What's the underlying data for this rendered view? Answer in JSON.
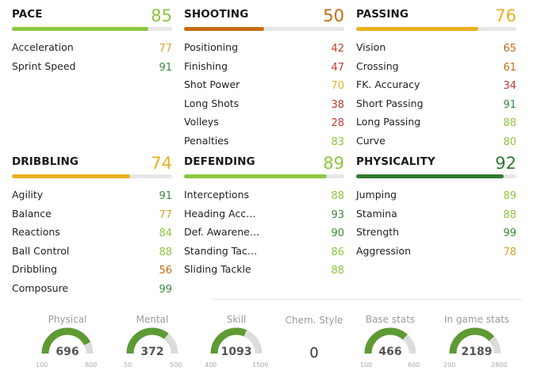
{
  "colors": {
    "green_light": "#8cc63f",
    "green_dark": "#2f7a2f",
    "orange": "#c46d12",
    "yellow": "#e8b120",
    "red": "#c0392b",
    "gauge_fill": "#5e9a34",
    "gauge_track": "#dcdcdc"
  },
  "blocks": [
    {
      "title": "PACE",
      "value": "85",
      "value_color": "#8cc63f",
      "bar_pct": 85,
      "bar_color": "#8cc63f",
      "stats": [
        {
          "label": "Acceleration",
          "value": "77",
          "color": "#d4a42a"
        },
        {
          "label": "Sprint Speed",
          "value": "91",
          "color": "#3a8a3a"
        }
      ]
    },
    {
      "title": "SHOOTING",
      "value": "50",
      "value_color": "#c46d12",
      "bar_pct": 50,
      "bar_color": "#c46d12",
      "stats": [
        {
          "label": "Positioning",
          "value": "42",
          "color": "#c0392b"
        },
        {
          "label": "Finishing",
          "value": "47",
          "color": "#c0392b"
        },
        {
          "label": "Shot Power",
          "value": "70",
          "color": "#e8b120"
        },
        {
          "label": "Long Shots",
          "value": "38",
          "color": "#c0392b"
        },
        {
          "label": "Volleys",
          "value": "28",
          "color": "#c0392b"
        },
        {
          "label": "Penalties",
          "value": "83",
          "color": "#8cc63f"
        }
      ]
    },
    {
      "title": "PASSING",
      "value": "76",
      "value_color": "#e8b120",
      "bar_pct": 76,
      "bar_color": "#e8b120",
      "stats": [
        {
          "label": "Vision",
          "value": "65",
          "color": "#c46d12"
        },
        {
          "label": "Crossing",
          "value": "61",
          "color": "#c46d12"
        },
        {
          "label": "FK. Accuracy",
          "value": "34",
          "color": "#c0392b"
        },
        {
          "label": "Short Passing",
          "value": "91",
          "color": "#3a8a3a"
        },
        {
          "label": "Long Passing",
          "value": "88",
          "color": "#8cc63f"
        },
        {
          "label": "Curve",
          "value": "80",
          "color": "#8cc63f"
        }
      ]
    },
    {
      "title": "DRIBBLING",
      "value": "74",
      "value_color": "#e8b120",
      "bar_pct": 74,
      "bar_color": "#e8b120",
      "stats": [
        {
          "label": "Agility",
          "value": "91",
          "color": "#3a8a3a"
        },
        {
          "label": "Balance",
          "value": "77",
          "color": "#d4a42a"
        },
        {
          "label": "Reactions",
          "value": "84",
          "color": "#8cc63f"
        },
        {
          "label": "Ball Control",
          "value": "88",
          "color": "#8cc63f"
        },
        {
          "label": "Dribbling",
          "value": "56",
          "color": "#c46d12"
        },
        {
          "label": "Composure",
          "value": "99",
          "color": "#3a8a3a"
        }
      ]
    },
    {
      "title": "DEFENDING",
      "value": "89",
      "value_color": "#8cc63f",
      "bar_pct": 89,
      "bar_color": "#8cc63f",
      "stats": [
        {
          "label": "Interceptions",
          "value": "88",
          "color": "#8cc63f"
        },
        {
          "label": "Heading Acc…",
          "value": "93",
          "color": "#3a8a3a"
        },
        {
          "label": "Def. Awarene…",
          "value": "90",
          "color": "#3a8a3a"
        },
        {
          "label": "Standing Tac…",
          "value": "86",
          "color": "#8cc63f"
        },
        {
          "label": "Sliding Tackle",
          "value": "88",
          "color": "#8cc63f"
        }
      ]
    },
    {
      "title": "PHYSICALITY",
      "value": "92",
      "value_color": "#2f7a2f",
      "bar_pct": 92,
      "bar_color": "#2f7a2f",
      "stats": [
        {
          "label": "Jumping",
          "value": "89",
          "color": "#8cc63f"
        },
        {
          "label": "Stamina",
          "value": "88",
          "color": "#8cc63f"
        },
        {
          "label": "Strength",
          "value": "99",
          "color": "#3a8a3a"
        },
        {
          "label": "Aggression",
          "value": "78",
          "color": "#d4a42a"
        }
      ]
    }
  ],
  "gauges": [
    {
      "label": "Physical",
      "value": "696",
      "min": "100",
      "max": "800",
      "fill_fraction": 0.851
    },
    {
      "label": "Mental",
      "value": "372",
      "min": "50",
      "max": "500",
      "fill_fraction": 0.716
    },
    {
      "label": "Skill",
      "value": "1093",
      "min": "400",
      "max": "1500",
      "fill_fraction": 0.63
    },
    {
      "label": "Base stats",
      "value": "466",
      "min": "100",
      "max": "600",
      "fill_fraction": 0.732
    },
    {
      "label": "In game stats",
      "value": "2189",
      "min": "200",
      "max": "2800",
      "fill_fraction": 0.765
    }
  ],
  "chem_style": {
    "label": "Chem. Style",
    "value": "0"
  }
}
